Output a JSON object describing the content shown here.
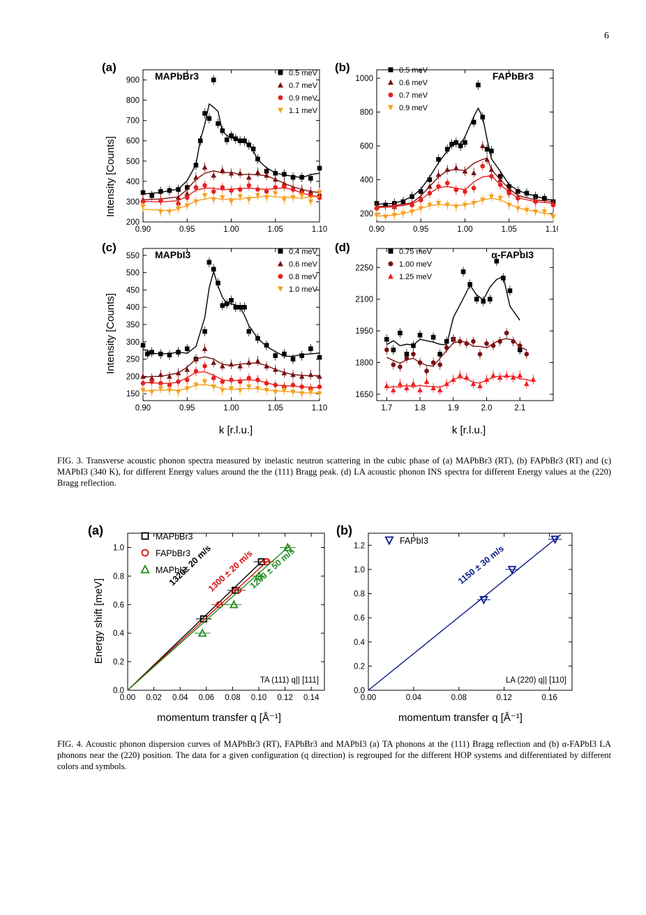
{
  "page_number": "6",
  "fig3": {
    "caption": "FIG. 3. Transverse acoustic phonon spectra measured by inelastic neutron scattering in the cubic phase of (a) MAPbBr3 (RT), (b) FAPbBr3 (RT) and (c) MAPbI3 (340 K), for different Energy values around the the (111) Bragg peak. (d) LA acoustic phonon INS spectra for different Energy values at the (220) Bragg reflection.",
    "ylabel": "Intensity [Counts]",
    "xlabel": "k [r.l.u.]"
  },
  "fig4": {
    "caption": "FIG. 4. Acoustic phonon dispersion curves of MAPbBr3 (RT), FAPbBr3 and MAPbI3 (a) TA phonons at the (111) Bragg reflection and (b) α-FAPbI3 LA phonons near the (220) position. The data for a given configuration (q direction) is regrouped for the different HOP systems and differentiated by different colors and symbols.",
    "ylabel": "Energy shift [meV]",
    "xlabel": "momentum transfer q [Å⁻¹]"
  },
  "chart_data": [
    {
      "panel": "(a)",
      "label": "MAPbBr3",
      "type": "scatter",
      "xlim": [
        0.9,
        1.1
      ],
      "ylim": [
        200,
        950
      ],
      "xticks": [
        0.9,
        0.95,
        1.0,
        1.05,
        1.1
      ],
      "yticks": [
        200,
        300,
        400,
        500,
        600,
        700,
        800,
        900
      ],
      "series": [
        {
          "name": "0.5 meV",
          "marker": "square",
          "color": "#000000",
          "x": [
            0.9,
            0.91,
            0.92,
            0.93,
            0.94,
            0.95,
            0.96,
            0.965,
            0.97,
            0.975,
            0.98,
            0.985,
            0.99,
            0.995,
            1.0,
            1.005,
            1.01,
            1.015,
            1.02,
            1.025,
            1.03,
            1.04,
            1.05,
            1.06,
            1.07,
            1.08,
            1.09,
            1.1
          ],
          "y": [
            345,
            330,
            350,
            355,
            360,
            370,
            480,
            600,
            735,
            710,
            900,
            685,
            650,
            605,
            625,
            610,
            600,
            600,
            580,
            560,
            510,
            450,
            440,
            435,
            420,
            420,
            415,
            465
          ]
        },
        {
          "name": "0.7 meV",
          "marker": "triangle-up",
          "color": "#7a1010",
          "x": [
            0.9,
            0.92,
            0.94,
            0.95,
            0.96,
            0.97,
            0.98,
            0.99,
            1.0,
            1.01,
            1.02,
            1.03,
            1.04,
            1.05,
            1.06,
            1.07,
            1.08,
            1.09,
            1.1
          ],
          "y": [
            310,
            310,
            320,
            340,
            420,
            470,
            430,
            455,
            440,
            440,
            420,
            445,
            430,
            410,
            390,
            370,
            360,
            350,
            340
          ]
        },
        {
          "name": "0.9 meV",
          "marker": "circle",
          "color": "#e82020",
          "x": [
            0.9,
            0.92,
            0.94,
            0.95,
            0.96,
            0.97,
            0.98,
            0.99,
            1.0,
            1.01,
            1.02,
            1.03,
            1.04,
            1.05,
            1.06,
            1.07,
            1.08,
            1.09,
            1.1
          ],
          "y": [
            300,
            305,
            290,
            320,
            370,
            380,
            350,
            370,
            355,
            360,
            380,
            360,
            350,
            370,
            375,
            360,
            340,
            330,
            320
          ]
        },
        {
          "name": "1.1 meV",
          "marker": "triangle-down",
          "color": "#f7a020",
          "x": [
            0.9,
            0.92,
            0.93,
            0.94,
            0.95,
            0.96,
            0.97,
            0.98,
            0.99,
            1.0,
            1.01,
            1.02,
            1.03,
            1.04,
            1.05,
            1.06,
            1.07,
            1.08,
            1.09,
            1.1
          ],
          "y": [
            275,
            250,
            250,
            265,
            280,
            300,
            330,
            310,
            320,
            300,
            325,
            310,
            330,
            320,
            340,
            310,
            320,
            330,
            300,
            345
          ]
        }
      ]
    },
    {
      "panel": "(b)",
      "label": "FAPbBr3",
      "type": "scatter",
      "xlim": [
        0.9,
        1.1
      ],
      "ylim": [
        150,
        1050
      ],
      "xticks": [
        0.9,
        0.95,
        1.0,
        1.05,
        1.1
      ],
      "yticks": [
        200,
        400,
        600,
        800,
        1000
      ],
      "series": [
        {
          "name": "0.5 meV",
          "marker": "square",
          "color": "#000000",
          "x": [
            0.9,
            0.91,
            0.92,
            0.93,
            0.94,
            0.95,
            0.96,
            0.97,
            0.98,
            0.985,
            0.99,
            0.995,
            1.0,
            1.01,
            1.015,
            1.02,
            1.025,
            1.03,
            1.04,
            1.05,
            1.06,
            1.07,
            1.08,
            1.09,
            1.1
          ],
          "y": [
            260,
            250,
            260,
            270,
            300,
            330,
            400,
            520,
            580,
            610,
            620,
            600,
            620,
            740,
            960,
            770,
            580,
            570,
            420,
            360,
            330,
            320,
            300,
            290,
            270
          ]
        },
        {
          "name": "0.6 meV",
          "marker": "triangle-up",
          "color": "#7a1010",
          "x": [
            0.9,
            0.92,
            0.94,
            0.95,
            0.96,
            0.97,
            0.98,
            0.99,
            1.0,
            1.01,
            1.02,
            1.025,
            1.03,
            1.04,
            1.05,
            1.06,
            1.08,
            1.1
          ],
          "y": [
            240,
            240,
            260,
            290,
            360,
            430,
            460,
            470,
            450,
            440,
            600,
            520,
            460,
            400,
            340,
            300,
            280,
            260
          ]
        },
        {
          "name": "0.7 meV",
          "marker": "circle",
          "color": "#e82020",
          "x": [
            0.9,
            0.92,
            0.94,
            0.95,
            0.96,
            0.97,
            0.98,
            0.99,
            1.0,
            1.01,
            1.02,
            1.03,
            1.04,
            1.05,
            1.06,
            1.08,
            1.1
          ],
          "y": [
            230,
            240,
            250,
            280,
            320,
            360,
            380,
            340,
            330,
            350,
            480,
            420,
            370,
            320,
            290,
            270,
            250
          ]
        },
        {
          "name": "0.9 meV",
          "marker": "triangle-down",
          "color": "#f7a020",
          "x": [
            0.9,
            0.91,
            0.92,
            0.93,
            0.94,
            0.95,
            0.96,
            0.97,
            0.98,
            0.99,
            1.0,
            1.01,
            1.02,
            1.03,
            1.04,
            1.05,
            1.06,
            1.07,
            1.08,
            1.09,
            1.1
          ],
          "y": [
            190,
            180,
            190,
            200,
            210,
            230,
            250,
            260,
            250,
            240,
            250,
            260,
            280,
            300,
            290,
            250,
            230,
            220,
            210,
            210,
            180
          ]
        }
      ]
    },
    {
      "panel": "(c)",
      "label": "MAPbI3",
      "type": "scatter",
      "xlim": [
        0.9,
        1.1
      ],
      "ylim": [
        130,
        570
      ],
      "xticks": [
        0.9,
        0.95,
        1.0,
        1.05,
        1.1
      ],
      "yticks": [
        150,
        200,
        250,
        300,
        350,
        400,
        450,
        500,
        550
      ],
      "series": [
        {
          "name": "0.4 meV",
          "marker": "square",
          "color": "#000000",
          "x": [
            0.9,
            0.905,
            0.91,
            0.92,
            0.93,
            0.94,
            0.95,
            0.96,
            0.97,
            0.975,
            0.98,
            0.985,
            0.99,
            0.995,
            1.0,
            1.005,
            1.01,
            1.015,
            1.02,
            1.03,
            1.04,
            1.05,
            1.06,
            1.07,
            1.08,
            1.09,
            1.1
          ],
          "y": [
            290,
            265,
            270,
            265,
            262,
            270,
            280,
            250,
            330,
            530,
            510,
            470,
            405,
            410,
            420,
            400,
            400,
            400,
            330,
            310,
            290,
            260,
            265,
            250,
            260,
            280,
            255
          ]
        },
        {
          "name": "0.6 meV",
          "marker": "triangle-up",
          "color": "#7a1010",
          "x": [
            0.9,
            0.91,
            0.92,
            0.93,
            0.94,
            0.95,
            0.96,
            0.97,
            0.98,
            0.99,
            1.0,
            1.01,
            1.02,
            1.03,
            1.04,
            1.05,
            1.06,
            1.07,
            1.08,
            1.09,
            1.1
          ],
          "y": [
            200,
            195,
            205,
            200,
            210,
            220,
            250,
            280,
            240,
            230,
            235,
            230,
            240,
            245,
            230,
            220,
            210,
            205,
            200,
            205,
            200
          ]
        },
        {
          "name": "0.8 meV",
          "marker": "circle",
          "color": "#e82020",
          "x": [
            0.9,
            0.91,
            0.92,
            0.93,
            0.94,
            0.95,
            0.96,
            0.97,
            0.98,
            0.99,
            1.0,
            1.01,
            1.02,
            1.03,
            1.04,
            1.05,
            1.06,
            1.07,
            1.08,
            1.09,
            1.1
          ],
          "y": [
            180,
            185,
            180,
            175,
            185,
            190,
            215,
            230,
            195,
            185,
            190,
            185,
            195,
            190,
            180,
            175,
            170,
            175,
            170,
            165,
            170
          ]
        },
        {
          "name": "1.0 meV",
          "marker": "triangle-down",
          "color": "#f7a020",
          "x": [
            0.9,
            0.91,
            0.92,
            0.93,
            0.94,
            0.95,
            0.96,
            0.97,
            0.98,
            0.99,
            1.0,
            1.01,
            1.02,
            1.03,
            1.04,
            1.05,
            1.06,
            1.07,
            1.08,
            1.09,
            1.1
          ],
          "y": [
            160,
            155,
            165,
            160,
            155,
            165,
            175,
            185,
            170,
            160,
            165,
            160,
            170,
            165,
            160,
            155,
            160,
            155,
            150,
            155,
            150
          ]
        }
      ]
    },
    {
      "panel": "(d)",
      "label": "α-FAPbI3",
      "type": "scatter",
      "xlim": [
        1.67,
        2.2
      ],
      "ylim": [
        1620,
        2340
      ],
      "xticks": [
        1.7,
        1.8,
        1.9,
        2.0,
        2.1
      ],
      "yticks": [
        1650,
        1800,
        1950,
        2100,
        2250
      ],
      "series": [
        {
          "name": "0.75 meV",
          "marker": "square",
          "color": "#000000",
          "x": [
            1.7,
            1.72,
            1.74,
            1.76,
            1.78,
            1.8,
            1.84,
            1.86,
            1.88,
            1.9,
            1.93,
            1.95,
            1.97,
            1.99,
            2.01,
            2.03,
            2.05,
            2.07,
            2.1
          ],
          "y": [
            1910,
            1860,
            1940,
            1840,
            1880,
            1930,
            1920,
            1840,
            1900,
            1910,
            2230,
            2170,
            2100,
            2090,
            2100,
            2280,
            2200,
            2140,
            1860
          ]
        },
        {
          "name": "1.00 meV",
          "marker": "circle",
          "color": "#7a1010",
          "x": [
            1.7,
            1.72,
            1.74,
            1.76,
            1.78,
            1.8,
            1.82,
            1.84,
            1.86,
            1.88,
            1.9,
            1.92,
            1.94,
            1.96,
            1.98,
            2.0,
            2.02,
            2.04,
            2.06,
            2.08,
            2.1,
            2.12
          ],
          "y": [
            1860,
            1790,
            1780,
            1820,
            1840,
            1800,
            1760,
            1800,
            1790,
            1870,
            1910,
            1900,
            1890,
            1900,
            1840,
            1890,
            1880,
            1900,
            1940,
            1900,
            1880,
            1840
          ]
        },
        {
          "name": "1.25 meV",
          "marker": "triangle-up",
          "color": "#f02020",
          "x": [
            1.7,
            1.72,
            1.74,
            1.76,
            1.78,
            1.8,
            1.82,
            1.84,
            1.86,
            1.88,
            1.9,
            1.92,
            1.94,
            1.96,
            1.98,
            2.0,
            2.02,
            2.04,
            2.06,
            2.08,
            2.1,
            2.12,
            2.14
          ],
          "y": [
            1690,
            1670,
            1700,
            1680,
            1700,
            1670,
            1710,
            1680,
            1670,
            1700,
            1720,
            1740,
            1730,
            1700,
            1690,
            1720,
            1740,
            1730,
            1740,
            1730,
            1740,
            1700,
            1720
          ]
        }
      ]
    },
    {
      "panel": "(a)",
      "type": "scatter",
      "xlim": [
        0,
        0.15
      ],
      "ylim": [
        0,
        1.1
      ],
      "xticks": [
        0.0,
        0.02,
        0.04,
        0.06,
        0.08,
        0.1,
        0.12,
        0.14
      ],
      "yticks": [
        0.0,
        0.2,
        0.4,
        0.6,
        0.8,
        1.0
      ],
      "annotation": "TA (111) q|| [111]",
      "series": [
        {
          "name": "MAPbBr3",
          "marker": "square-open",
          "color": "#000000",
          "x": [
            0.058,
            0.082,
            0.102
          ],
          "y": [
            0.5,
            0.7,
            0.9
          ],
          "fit_label": "1320± 20 m/s"
        },
        {
          "name": "FAPbBr3",
          "marker": "circle-open",
          "color": "#d41010",
          "x": [
            0.07,
            0.084,
            0.106
          ],
          "y": [
            0.6,
            0.7,
            0.9
          ],
          "fit_label": "1300 ± 20 m/s"
        },
        {
          "name": "MAPbI3",
          "marker": "triangle-up-open",
          "color": "#1e8a1e",
          "x": [
            0.057,
            0.081,
            0.1,
            0.122
          ],
          "y": [
            0.4,
            0.6,
            0.8,
            1.0
          ],
          "fit_label": "1200 ± 50 m/s"
        }
      ]
    },
    {
      "panel": "(b)",
      "type": "scatter",
      "xlim": [
        0,
        0.18
      ],
      "ylim": [
        0,
        1.3
      ],
      "xticks": [
        0.0,
        0.04,
        0.08,
        0.12,
        0.16
      ],
      "yticks": [
        0.0,
        0.2,
        0.4,
        0.6,
        0.8,
        1.0,
        1.2
      ],
      "annotation": "LA (220)  q|| [110]",
      "series": [
        {
          "name": "FAPbI3",
          "marker": "triangle-down-open",
          "color": "#0a1a8c",
          "x": [
            0.102,
            0.127,
            0.165
          ],
          "y": [
            0.75,
            1.0,
            1.25
          ],
          "fit_label": "1150 ± 30 m/s"
        }
      ]
    }
  ]
}
